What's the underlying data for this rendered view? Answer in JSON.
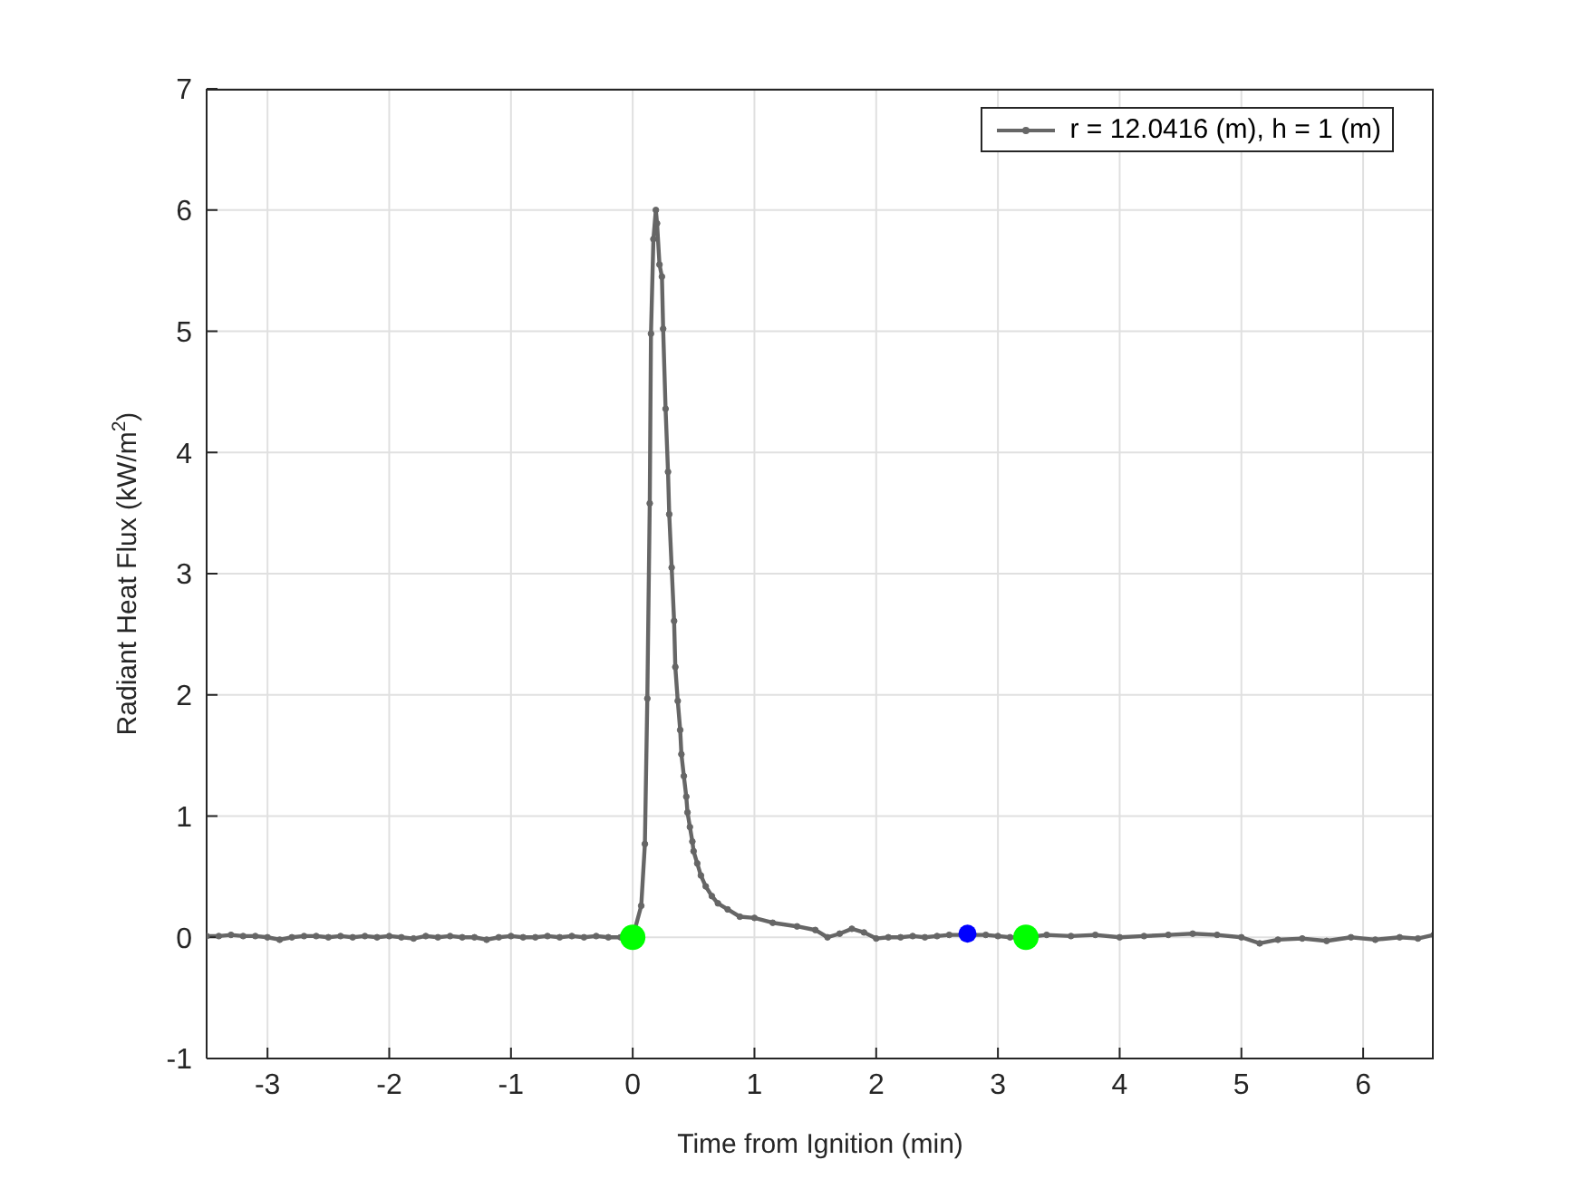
{
  "chart_data": {
    "type": "line",
    "xlabel": "Time from Ignition (min)",
    "ylabel": "Radiant Heat Flux (kW/m$^{2}$)",
    "xlim": [
      -3.5,
      6.58
    ],
    "xticks": [
      -3,
      -2,
      -1,
      0,
      1,
      2,
      3,
      4,
      5,
      6
    ],
    "ylim": [
      -1,
      7
    ],
    "yticks": [
      -1,
      0,
      1,
      2,
      3,
      4,
      5,
      6,
      7
    ],
    "grid": true,
    "legend": "top right",
    "series": [
      {
        "name": "r = 12.0416 (m), h = 1 (m)",
        "type": "line",
        "color": "#666666",
        "marker": "circle",
        "line_style": "solid",
        "x": [
          -3.5,
          -3.4,
          -3.3,
          -3.2,
          -3.1,
          -3.0,
          -2.9,
          -2.8,
          -2.7,
          -2.6,
          -2.5,
          -2.4,
          -2.3,
          -2.2,
          -2.1,
          -2.0,
          -1.9,
          -1.8,
          -1.7,
          -1.6,
          -1.5,
          -1.4,
          -1.3,
          -1.2,
          -1.1,
          -1.0,
          -0.9,
          -0.8,
          -0.7,
          -0.6,
          -0.5,
          -0.4,
          -0.3,
          -0.2,
          -0.1,
          0,
          0.07,
          0.1,
          0.12,
          0.14,
          0.15,
          0.17,
          0.19,
          0.2,
          0.22,
          0.24,
          0.25,
          0.27,
          0.29,
          0.3,
          0.32,
          0.34,
          0.35,
          0.37,
          0.39,
          0.4,
          0.42,
          0.44,
          0.45,
          0.47,
          0.49,
          0.5,
          0.53,
          0.56,
          0.6,
          0.65,
          0.7,
          0.78,
          0.88,
          1.0,
          1.15,
          1.35,
          1.5,
          1.6,
          1.7,
          1.8,
          1.9,
          2.0,
          2.1,
          2.2,
          2.3,
          2.4,
          2.5,
          2.6,
          2.9,
          3.0,
          3.1,
          3.23,
          3.4,
          3.6,
          3.8,
          4.0,
          4.2,
          4.4,
          4.6,
          4.8,
          5.0,
          5.15,
          5.3,
          5.5,
          5.7,
          5.9,
          6.1,
          6.3,
          6.45,
          6.58
        ],
        "values": [
          0.01,
          0.01,
          0.02,
          0.01,
          0.01,
          0.0,
          -0.02,
          0.0,
          0.01,
          0.01,
          0.0,
          0.01,
          0.0,
          0.01,
          0.0,
          0.01,
          0.0,
          -0.01,
          0.01,
          0.0,
          0.01,
          0.0,
          0.0,
          -0.02,
          0.0,
          0.01,
          0.0,
          0.0,
          0.01,
          0.0,
          0.01,
          0.0,
          0.01,
          0.0,
          0.0,
          0.0,
          0.26,
          0.77,
          1.97,
          3.58,
          4.98,
          5.76,
          6.0,
          5.89,
          5.55,
          5.45,
          5.02,
          4.36,
          3.84,
          3.49,
          3.05,
          2.61,
          2.23,
          1.95,
          1.71,
          1.51,
          1.33,
          1.16,
          1.03,
          0.91,
          0.79,
          0.71,
          0.61,
          0.51,
          0.42,
          0.34,
          0.28,
          0.23,
          0.17,
          0.16,
          0.12,
          0.09,
          0.06,
          0.0,
          0.03,
          0.07,
          0.04,
          -0.01,
          0.0,
          0.0,
          0.01,
          0.0,
          0.01,
          0.02,
          0.02,
          0.01,
          0.0,
          0.0,
          0.02,
          0.01,
          0.02,
          0.0,
          0.01,
          0.02,
          0.03,
          0.02,
          0.0,
          -0.05,
          -0.02,
          -0.01,
          -0.03,
          0.0,
          -0.02,
          0.0,
          -0.01,
          0.02
        ]
      },
      {
        "type": "scatter",
        "color": "#00ff00",
        "marker": "circle",
        "x": [
          0,
          3.23
        ],
        "values": [
          0,
          0
        ]
      },
      {
        "type": "scatter",
        "color": "#0000ff",
        "marker": "circle",
        "x": [
          2.75
        ],
        "values": [
          0.03
        ]
      }
    ]
  }
}
